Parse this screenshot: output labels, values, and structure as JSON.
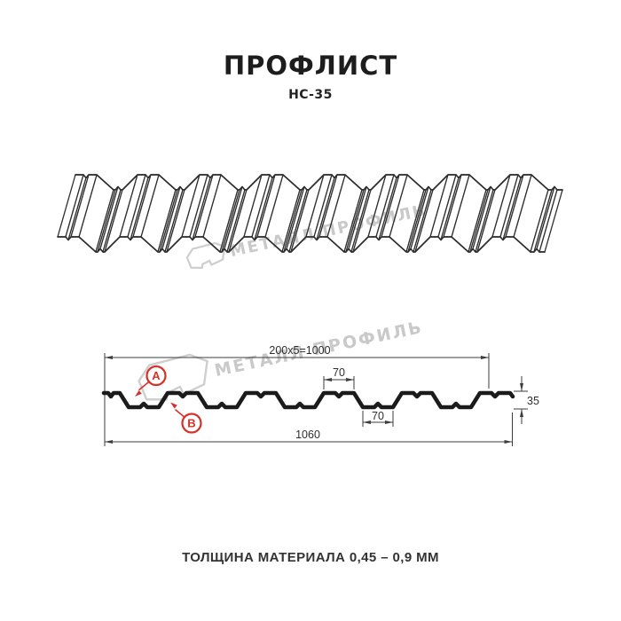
{
  "title": "ПРОФЛИСТ",
  "subtitle": "НС-35",
  "footer": "ТОЛЩИНА МАТЕРИАЛА 0,45 – 0,9 ММ",
  "watermark": {
    "brand": "МЕТАЛЛ ПРОФИЛЬ",
    "color": "#c9c9c9"
  },
  "diagram": {
    "dim_coverage": "200x5=1000",
    "dim_crest_top": "70",
    "dim_valley_bottom": "70",
    "dim_height": "35",
    "dim_overall": "1060",
    "label_a": "А",
    "label_b": "В",
    "accent_red": "#d63129",
    "line_color": "#1b1b1b",
    "thin_line_color": "#3c3c3c"
  }
}
